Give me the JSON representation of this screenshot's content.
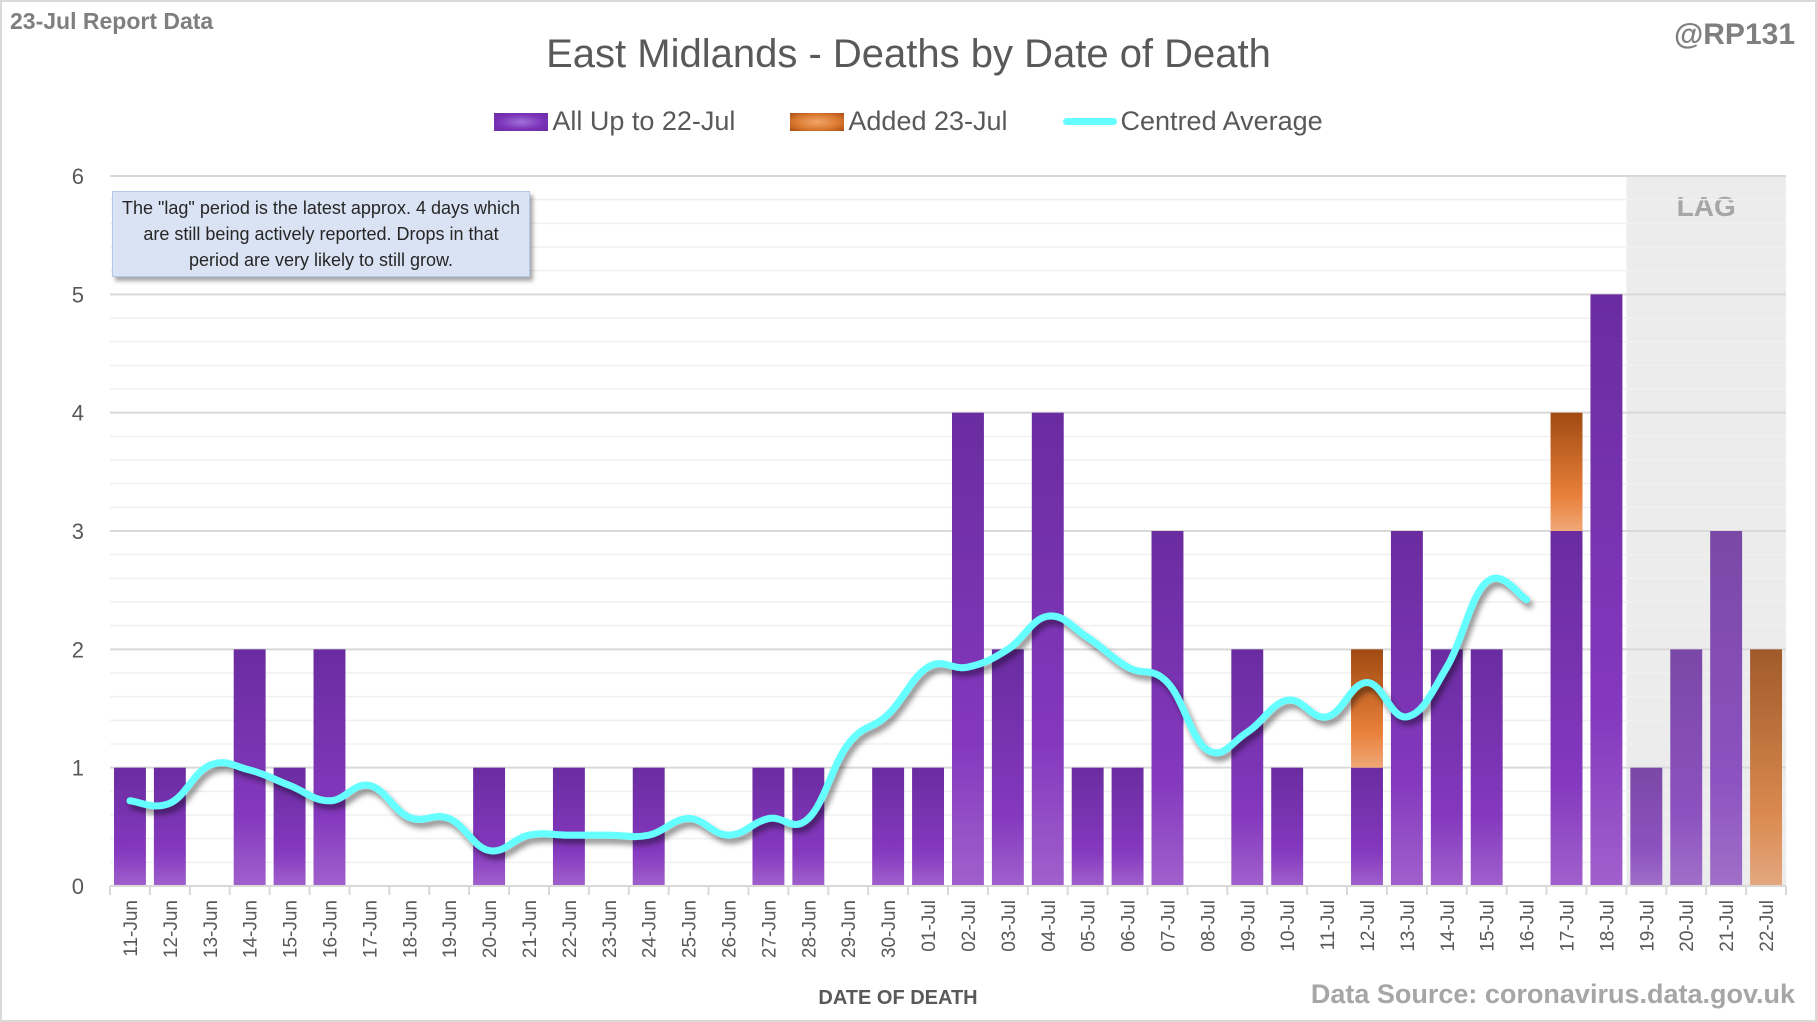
{
  "header": {
    "report_label": "23-Jul Report Data",
    "handle": "@RP131"
  },
  "footer": {
    "source": "Data Source: coronavirus.data.gov.uk"
  },
  "annotation": {
    "note": "The \"lag\" period is the latest approx. 4 days which are still being actively reported.  Drops in that period are very likely to still grow.",
    "lag_label": "LAG"
  },
  "legend": {
    "items": [
      {
        "label": "All Up to 22-Jul",
        "kind": "purple-bar"
      },
      {
        "label": "Added 23-Jul",
        "kind": "orange-bar"
      },
      {
        "label": "Centred Average",
        "kind": "cyan-line"
      }
    ]
  },
  "colors": {
    "purple_top": "#6a2ca0",
    "purple_mid": "#8438be",
    "purple_bottom": "#a060cc",
    "orange_top": "#a04a12",
    "orange_mid": "#e8803a",
    "orange_bottom": "#f0a878",
    "average_line": "#66ffff",
    "lag_shade": "#ececec",
    "grid_major": "#d9d9d9",
    "grid_minor": "#f0f0f0"
  },
  "chart_data": {
    "type": "bar",
    "title": "East Midlands - Deaths by Date of Death",
    "xlabel": "DATE OF DEATH",
    "ylabel": "",
    "ylim": [
      0,
      6
    ],
    "yticks": [
      0,
      1,
      2,
      3,
      4,
      5,
      6
    ],
    "minor_grid_step": 0.2,
    "stacked": true,
    "lag_period": [
      "19-Jul",
      "22-Jul"
    ],
    "categories": [
      "11-Jun",
      "12-Jun",
      "13-Jun",
      "14-Jun",
      "15-Jun",
      "16-Jun",
      "17-Jun",
      "18-Jun",
      "19-Jun",
      "20-Jun",
      "21-Jun",
      "22-Jun",
      "23-Jun",
      "24-Jun",
      "25-Jun",
      "26-Jun",
      "27-Jun",
      "28-Jun",
      "29-Jun",
      "30-Jun",
      "01-Jul",
      "02-Jul",
      "03-Jul",
      "04-Jul",
      "05-Jul",
      "06-Jul",
      "07-Jul",
      "08-Jul",
      "09-Jul",
      "10-Jul",
      "11-Jul",
      "12-Jul",
      "13-Jul",
      "14-Jul",
      "15-Jul",
      "16-Jul",
      "17-Jul",
      "18-Jul",
      "19-Jul",
      "20-Jul",
      "21-Jul",
      "22-Jul"
    ],
    "series": [
      {
        "name": "All Up to 22-Jul",
        "type": "bar",
        "values": [
          1,
          1,
          0,
          2,
          1,
          2,
          0,
          0,
          0,
          1,
          0,
          1,
          0,
          1,
          0,
          0,
          1,
          1,
          0,
          1,
          1,
          4,
          2,
          4,
          1,
          1,
          3,
          0,
          2,
          1,
          0,
          1,
          3,
          2,
          2,
          0,
          3,
          5,
          1,
          2,
          3,
          0
        ]
      },
      {
        "name": "Added 23-Jul",
        "type": "bar",
        "values": [
          0,
          0,
          0,
          0,
          0,
          0,
          0,
          0,
          0,
          0,
          0,
          0,
          0,
          0,
          0,
          0,
          0,
          0,
          0,
          0,
          0,
          0,
          0,
          0,
          0,
          0,
          0,
          0,
          0,
          0,
          0,
          1,
          0,
          0,
          0,
          0,
          1,
          0,
          0,
          0,
          0,
          2
        ]
      },
      {
        "name": "Centred Average",
        "type": "line",
        "values": [
          0.72,
          0.7,
          1.02,
          0.98,
          0.85,
          0.72,
          0.85,
          0.58,
          0.57,
          0.3,
          0.43,
          0.43,
          0.43,
          0.43,
          0.57,
          0.43,
          0.57,
          0.57,
          1.2,
          1.45,
          1.85,
          1.85,
          2.0,
          2.28,
          2.1,
          1.85,
          1.72,
          1.15,
          1.3,
          1.57,
          1.43,
          1.72,
          1.43,
          1.85,
          2.57,
          2.42,
          null,
          null,
          null,
          null,
          null,
          null
        ]
      }
    ],
    "legend_position": "top-center",
    "grid": true
  }
}
